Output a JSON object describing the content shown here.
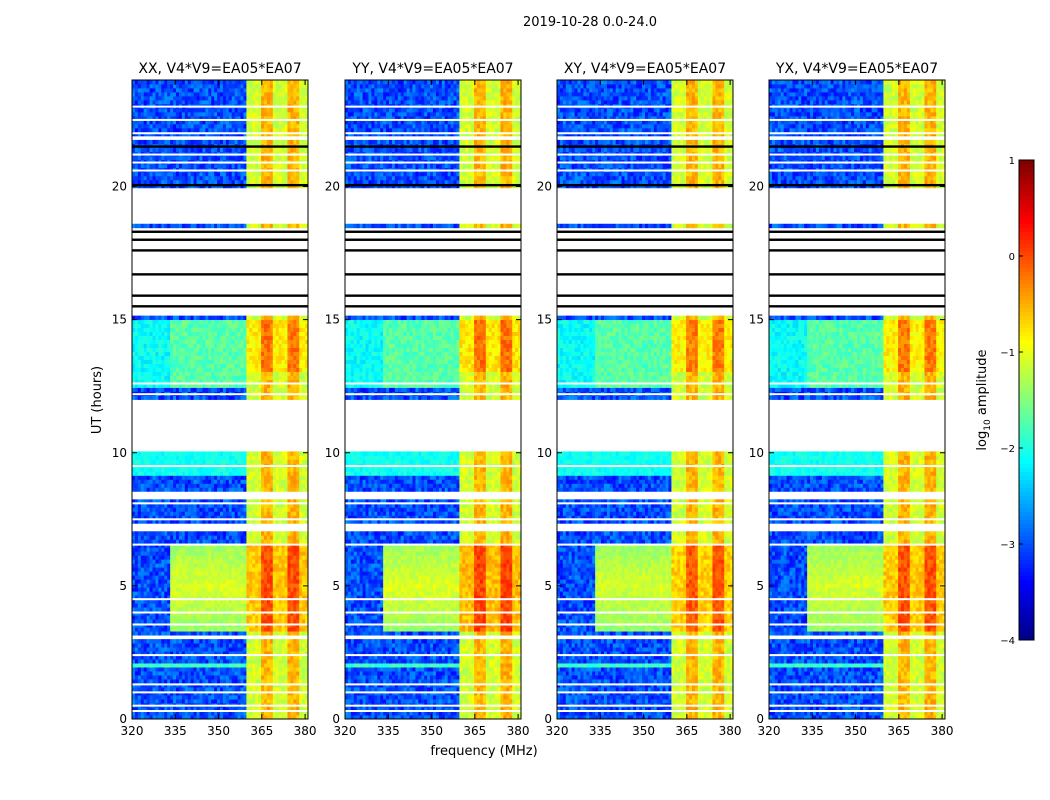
{
  "chart_data": {
    "type": "heatmap",
    "title": "2019-10-28 0.0-24.0",
    "xlabel": "frequency (MHz)",
    "ylabel": "UT (hours)",
    "xlim": [
      320,
      381
    ],
    "ylim": [
      0,
      24
    ],
    "xticks": [
      320,
      335,
      350,
      365,
      380
    ],
    "yticks": [
      0,
      5,
      10,
      15,
      20
    ],
    "panels": [
      {
        "title": "XX, V4*V9=EA05*EA07",
        "pol": "XX",
        "strength": 1.0
      },
      {
        "title": "YY, V4*V9=EA05*EA07",
        "pol": "YY",
        "strength": 1.1
      },
      {
        "title": "XY, V4*V9=EA05*EA07",
        "pol": "XY",
        "strength": 0.9
      },
      {
        "title": "YX, V4*V9=EA05*EA07",
        "pol": "YX",
        "strength": 0.95
      }
    ],
    "colorbar": {
      "label": "log",
      "label_sub": "10",
      "label_rest": " amplitude",
      "ticks": [
        1,
        0,
        -1,
        -2,
        -3,
        -4
      ],
      "range": [
        -4,
        1
      ],
      "colormap": "jet"
    },
    "bright_band_MHz": [
      360,
      383
    ],
    "flagged_hour_ranges": [
      [
        3.0,
        3.2
      ],
      [
        7.0,
        7.3
      ],
      [
        8.3,
        8.6
      ],
      [
        10.0,
        12.0
      ],
      [
        15.2,
        18.5
      ],
      [
        18.6,
        20.0
      ],
      [
        21.7,
        21.9
      ]
    ],
    "gap_hour_ranges": [
      [
        10.0,
        12.0
      ],
      [
        18.6,
        20.0
      ]
    ]
  }
}
